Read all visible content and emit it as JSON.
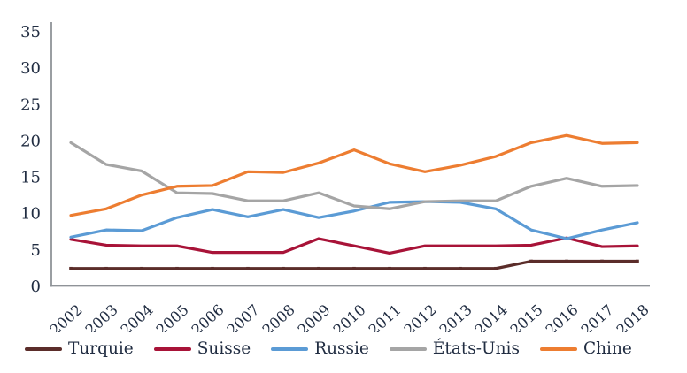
{
  "colors": {
    "text": "#212d42",
    "axis": "#8f9398",
    "background": "#ffffff"
  },
  "chart_data": {
    "type": "line",
    "title": "",
    "xlabel": "",
    "ylabel": "",
    "x": [
      2002,
      2003,
      2004,
      2005,
      2006,
      2007,
      2008,
      2009,
      2010,
      2011,
      2012,
      2013,
      2014,
      2015,
      2016,
      2017,
      2018
    ],
    "ylim": [
      0,
      35
    ],
    "yticks": [
      0,
      5,
      10,
      15,
      20,
      25,
      30,
      35
    ],
    "grid": false,
    "legend_position": "bottom",
    "series": [
      {
        "name": "Turquie",
        "color": "#5b2d2a",
        "marker": true,
        "values": [
          2.4,
          2.4,
          2.4,
          2.4,
          2.4,
          2.4,
          2.4,
          2.4,
          2.4,
          2.4,
          2.4,
          2.4,
          2.4,
          3.4,
          3.4,
          3.4,
          3.4
        ]
      },
      {
        "name": "Suisse",
        "color": "#a81338",
        "marker": false,
        "values": [
          6.4,
          5.6,
          5.5,
          5.5,
          4.6,
          4.6,
          4.6,
          6.5,
          5.5,
          4.5,
          5.5,
          5.5,
          5.5,
          5.6,
          6.6,
          5.4,
          5.5
        ]
      },
      {
        "name": "Russie",
        "color": "#5b9bd5",
        "marker": false,
        "values": [
          6.7,
          7.7,
          7.6,
          9.4,
          10.5,
          9.5,
          10.5,
          9.4,
          10.3,
          11.5,
          11.6,
          11.5,
          10.6,
          7.7,
          6.5,
          7.7,
          8.7
        ]
      },
      {
        "name": "États-Unis",
        "color": "#a5a5a5",
        "marker": false,
        "values": [
          19.7,
          16.7,
          15.8,
          12.8,
          12.7,
          11.7,
          11.7,
          12.8,
          11.0,
          10.6,
          11.6,
          11.7,
          11.7,
          13.7,
          14.8,
          13.7,
          13.8
        ]
      },
      {
        "name": "Chine",
        "color": "#ed7d31",
        "marker": false,
        "values": [
          9.7,
          10.6,
          12.5,
          13.7,
          13.8,
          15.7,
          15.6,
          16.9,
          18.7,
          16.8,
          15.7,
          16.6,
          17.8,
          19.7,
          20.7,
          19.6,
          19.7
        ]
      }
    ]
  }
}
